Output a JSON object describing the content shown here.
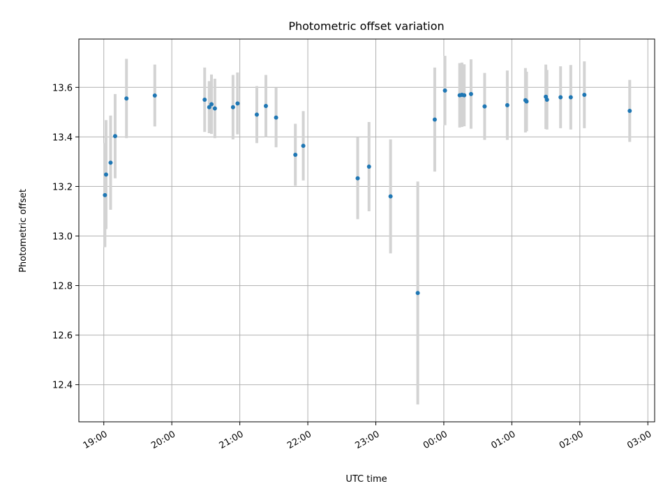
{
  "chart_data": {
    "type": "scatter",
    "title": "Photometric offset variation",
    "xlabel": "UTC time",
    "ylabel": "Photometric offset",
    "grid": true,
    "x_ticks": [
      "19:00",
      "20:00",
      "21:00",
      "22:00",
      "23:00",
      "00:00",
      "01:00",
      "02:00",
      "03:00"
    ],
    "y_ticks": [
      "12.4",
      "12.6",
      "12.8",
      "13.0",
      "13.2",
      "13.4",
      "13.6"
    ],
    "ylim": [
      12.25,
      13.795
    ],
    "xlim": [
      "18:38",
      "03:06"
    ],
    "colors": {
      "point": "#1f77b4",
      "errorbar": "#d3d3d3",
      "grid": "#b0b0b0"
    },
    "series": [
      {
        "x": [
          "19:01",
          "19:02",
          "19:06",
          "19:10",
          "19:20",
          "19:45",
          "20:29",
          "20:33",
          "20:35",
          "20:38",
          "20:54",
          "20:58",
          "21:15",
          "21:23",
          "21:32",
          "21:49",
          "21:56",
          "22:44",
          "22:54",
          "23:13",
          "23:37",
          "23:52",
          "00:01",
          "00:14",
          "00:16",
          "00:18",
          "00:24",
          "00:36",
          "00:56",
          "01:12",
          "01:13",
          "01:30",
          "01:31",
          "01:43",
          "01:52",
          "02:04",
          "02:44"
        ],
        "y": [
          13.165,
          13.248,
          13.296,
          13.403,
          13.555,
          13.567,
          13.55,
          13.52,
          13.532,
          13.515,
          13.52,
          13.535,
          13.49,
          13.525,
          13.478,
          13.328,
          13.364,
          13.233,
          13.28,
          13.16,
          12.77,
          13.47,
          13.587,
          13.568,
          13.57,
          13.568,
          13.573,
          13.523,
          13.528,
          13.548,
          13.543,
          13.562,
          13.55,
          13.56,
          13.56,
          13.57,
          13.505
        ],
        "err": [
          0.21,
          0.22,
          0.19,
          0.17,
          0.16,
          0.125,
          0.13,
          0.105,
          0.12,
          0.12,
          0.13,
          0.125,
          0.115,
          0.125,
          0.12,
          0.125,
          0.14,
          0.165,
          0.18,
          0.23,
          0.45,
          0.21,
          0.14,
          0.13,
          0.13,
          0.125,
          0.14,
          0.135,
          0.14,
          0.13,
          0.12,
          0.13,
          0.12,
          0.125,
          0.13,
          0.135,
          0.125
        ]
      }
    ]
  }
}
